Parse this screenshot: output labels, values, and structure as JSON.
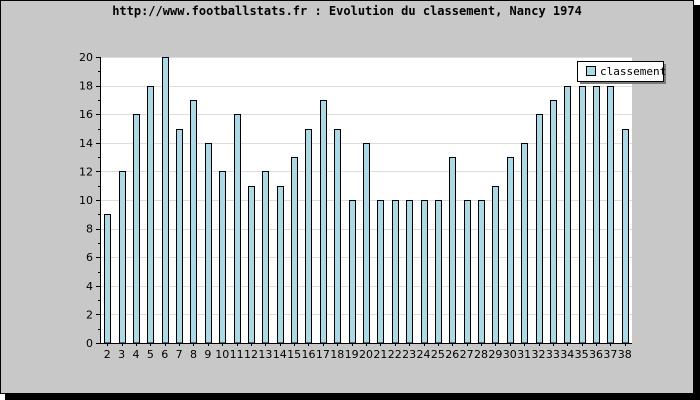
{
  "chart_data": {
    "type": "bar",
    "title": "http://www.footballstats.fr : Evolution du classement, Nancy 1974",
    "xlabel": "",
    "ylabel": "",
    "categories": [
      "2",
      "3",
      "4",
      "5",
      "6",
      "7",
      "8",
      "9",
      "10",
      "11",
      "12",
      "13",
      "14",
      "15",
      "16",
      "17",
      "18",
      "19",
      "20",
      "21",
      "22",
      "23",
      "24",
      "25",
      "26",
      "27",
      "28",
      "29",
      "30",
      "31",
      "32",
      "33",
      "34",
      "35",
      "36",
      "37",
      "38"
    ],
    "series": [
      {
        "name": "classement",
        "values": [
          9,
          12,
          16,
          18,
          20,
          15,
          17,
          14,
          12,
          16,
          11,
          12,
          11,
          13,
          15,
          17,
          15,
          10,
          14,
          10,
          10,
          10,
          10,
          10,
          13,
          10,
          10,
          11,
          13,
          14,
          16,
          17,
          18,
          18,
          18,
          18,
          15
        ]
      }
    ],
    "ylim": [
      0,
      20
    ],
    "yticks": [
      0,
      2,
      4,
      6,
      8,
      10,
      12,
      14,
      16,
      18,
      20
    ],
    "grid": true,
    "legend_position": "top-right",
    "colors": {
      "background": "#c8c8c8",
      "plot_background": "#ffffff",
      "bar_fill": "#add8e6",
      "bar_stroke": "#000000",
      "grid": "#dcdcdc"
    }
  }
}
